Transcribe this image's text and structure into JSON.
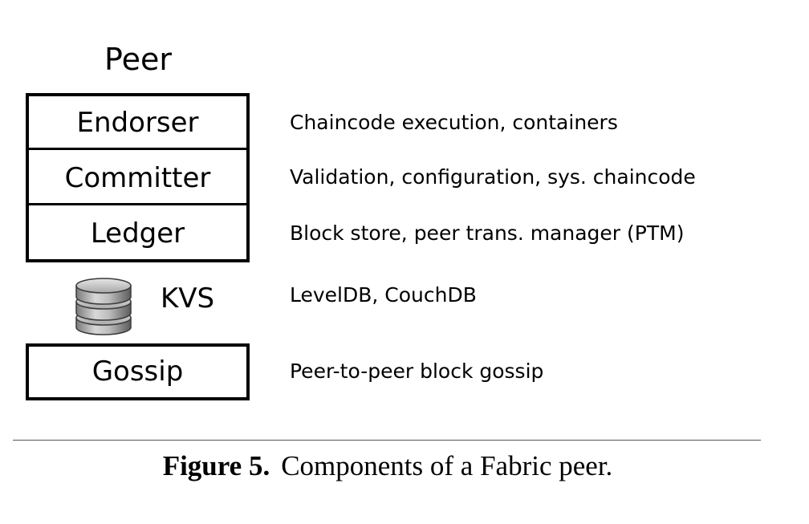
{
  "diagram": {
    "title": "Peer",
    "layers": [
      {
        "label": "Endorser",
        "description": "Chaincode execution, containers"
      },
      {
        "label": "Committer",
        "description": "Validation, configuration, sys. chaincode"
      },
      {
        "label": "Ledger",
        "description": "Block store, peer trans. manager (PTM)"
      }
    ],
    "kvs": {
      "label": "KVS",
      "icon": "database-icon",
      "description": "LevelDB, CouchDB"
    },
    "gossip": {
      "label": "Gossip",
      "description": "Peer-to-peer block gossip"
    }
  },
  "caption": {
    "label": "Figure 5.",
    "text": "Components of a Fabric peer."
  }
}
